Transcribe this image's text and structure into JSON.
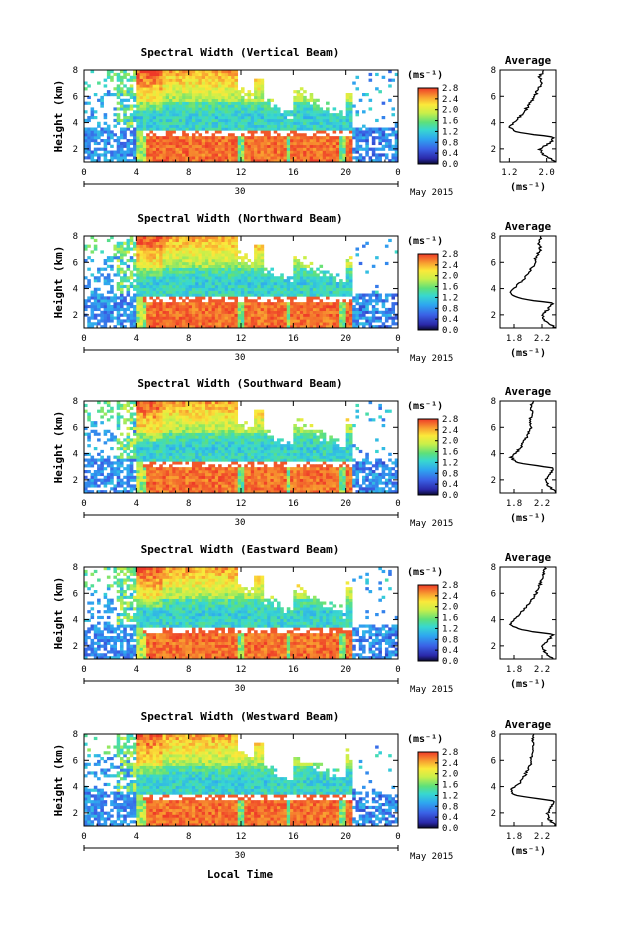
{
  "figure": {
    "bottom_label": "Local Time",
    "month_label": "May 2015",
    "day_label": "30",
    "time_ticks": [
      "0",
      "4",
      "8",
      "12",
      "16",
      "20",
      "0"
    ],
    "height_label": "Height (km)",
    "height_ticks": [
      "2",
      "4",
      "6",
      "8"
    ],
    "colorbar_unit": "(ms⁻¹)",
    "colorbar_ticks": [
      "0.0",
      "0.4",
      "0.8",
      "1.2",
      "1.6",
      "2.0",
      "2.4",
      "2.8"
    ],
    "average_title": "Average",
    "average_xlabel": "(ms⁻¹)",
    "average_height_ticks": [
      "2",
      "4",
      "6",
      "8"
    ]
  },
  "chart_data": [
    {
      "type": "heatmap",
      "title": "Spectral Width (Vertical Beam)",
      "xlabel": "",
      "ylabel": "Height (km)",
      "x_range_hours": [
        0,
        24
      ],
      "ylim": [
        1,
        8
      ],
      "clim": [
        0.0,
        2.8
      ],
      "average_profile": {
        "xticks": [
          "1.2",
          "2.0"
        ],
        "xlim": [
          1.0,
          2.2
        ],
        "heights": [
          1.0,
          1.5,
          2.0,
          2.5,
          2.9,
          3.1,
          3.3,
          3.5,
          3.7,
          4.0,
          4.5,
          5.0,
          5.5,
          6.0,
          6.5,
          7.0,
          7.5,
          8.0
        ],
        "values": [
          2.2,
          1.95,
          1.85,
          2.1,
          2.15,
          1.7,
          1.35,
          1.25,
          1.2,
          1.3,
          1.45,
          1.55,
          1.65,
          1.75,
          1.8,
          1.9,
          1.85,
          1.95
        ]
      }
    },
    {
      "type": "heatmap",
      "title": "Spectral Width (Northward Beam)",
      "xlabel": "",
      "ylabel": "Height (km)",
      "x_range_hours": [
        0,
        24
      ],
      "ylim": [
        1,
        8
      ],
      "clim": [
        0.0,
        2.8
      ],
      "average_profile": {
        "xticks": [
          "1.8",
          "2.2"
        ],
        "xlim": [
          1.6,
          2.4
        ],
        "heights": [
          1.0,
          1.5,
          2.0,
          2.5,
          2.9,
          3.1,
          3.3,
          3.5,
          3.7,
          4.0,
          4.5,
          5.0,
          5.5,
          6.0,
          6.5,
          7.0,
          7.5,
          8.0
        ],
        "values": [
          2.4,
          2.25,
          2.2,
          2.3,
          2.35,
          2.05,
          1.85,
          1.78,
          1.75,
          1.8,
          1.9,
          1.98,
          2.05,
          2.1,
          2.12,
          2.18,
          2.15,
          2.2
        ]
      }
    },
    {
      "type": "heatmap",
      "title": "Spectral Width (Southward Beam)",
      "xlabel": "",
      "ylabel": "Height (km)",
      "x_range_hours": [
        0,
        24
      ],
      "ylim": [
        1,
        8
      ],
      "clim": [
        0.0,
        2.8
      ],
      "average_profile": {
        "xticks": [
          "1.8",
          "2.2"
        ],
        "xlim": [
          1.6,
          2.4
        ],
        "heights": [
          1.0,
          1.5,
          2.0,
          2.5,
          2.9,
          3.1,
          3.3,
          3.5,
          3.7,
          4.0,
          4.5,
          5.0,
          5.5,
          6.0,
          6.5,
          7.0,
          7.5,
          8.0
        ],
        "values": [
          2.4,
          2.3,
          2.25,
          2.32,
          2.38,
          2.1,
          1.88,
          1.8,
          1.76,
          1.82,
          1.9,
          1.95,
          2.0,
          2.05,
          2.02,
          2.06,
          2.04,
          2.08
        ]
      }
    },
    {
      "type": "heatmap",
      "title": "Spectral Width (Eastward Beam)",
      "xlabel": "",
      "ylabel": "Height (km)",
      "x_range_hours": [
        0,
        24
      ],
      "ylim": [
        1,
        8
      ],
      "clim": [
        0.0,
        2.8
      ],
      "average_profile": {
        "xticks": [
          "1.8",
          "2.2"
        ],
        "xlim": [
          1.6,
          2.4
        ],
        "heights": [
          1.0,
          1.5,
          2.0,
          2.5,
          2.9,
          3.1,
          3.3,
          3.5,
          3.7,
          4.0,
          4.5,
          5.0,
          5.5,
          6.0,
          6.5,
          7.0,
          7.5,
          8.0
        ],
        "values": [
          2.35,
          2.25,
          2.2,
          2.3,
          2.36,
          2.05,
          1.85,
          1.78,
          1.74,
          1.8,
          1.9,
          1.98,
          2.05,
          2.12,
          2.16,
          2.2,
          2.22,
          2.25
        ]
      }
    },
    {
      "type": "heatmap",
      "title": "Spectral Width (Westward Beam)",
      "xlabel": "Local Time",
      "ylabel": "Height (km)",
      "x_range_hours": [
        0,
        24
      ],
      "ylim": [
        1,
        8
      ],
      "clim": [
        0.0,
        2.8
      ],
      "average_profile": {
        "xticks": [
          "1.8",
          "2.2"
        ],
        "xlim": [
          1.6,
          2.4
        ],
        "heights": [
          1.0,
          1.5,
          2.0,
          2.5,
          2.9,
          3.1,
          3.3,
          3.5,
          3.7,
          4.0,
          4.5,
          5.0,
          5.5,
          6.0,
          6.5,
          7.0,
          7.5,
          8.0
        ],
        "values": [
          2.4,
          2.3,
          2.28,
          2.34,
          2.4,
          2.1,
          1.86,
          1.78,
          1.75,
          1.82,
          1.92,
          1.97,
          2.02,
          2.06,
          2.04,
          2.08,
          2.06,
          2.1
        ]
      }
    }
  ]
}
